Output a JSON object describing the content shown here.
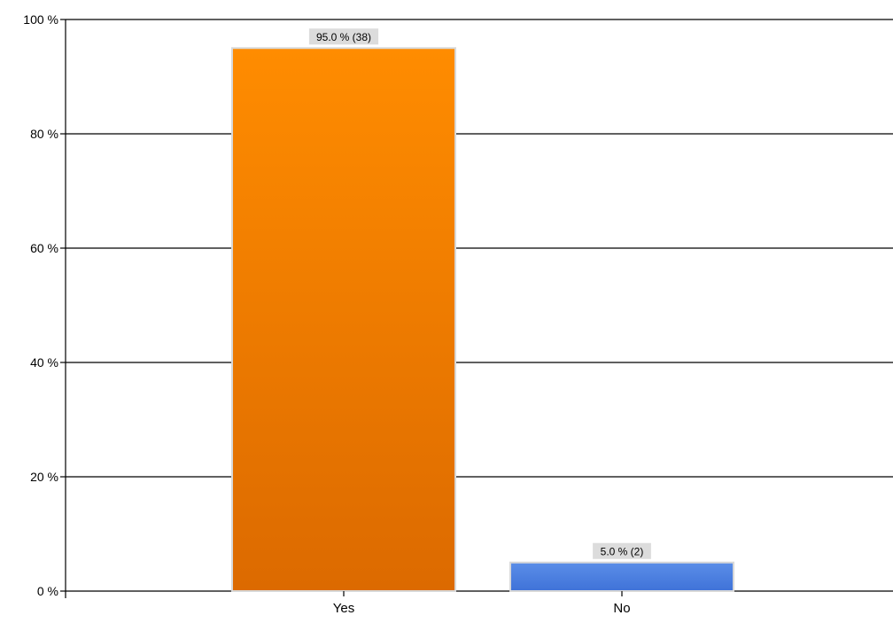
{
  "chart_data": {
    "type": "bar",
    "title": "",
    "xlabel": "",
    "ylabel": "",
    "categories": [
      "Yes",
      "No"
    ],
    "values": [
      95.0,
      5.0
    ],
    "counts": [
      38,
      2
    ],
    "data_labels": [
      "95.0 % (38)",
      "5.0 % (2)"
    ],
    "bar_colors": [
      {
        "top": "#ff8c00",
        "bottom": "#dc6a00"
      },
      {
        "top": "#5b8ee8",
        "bottom": "#3f72d8"
      }
    ],
    "ylim": [
      0,
      100
    ],
    "yticks": [
      0,
      20,
      40,
      60,
      80,
      100
    ],
    "ytick_labels": [
      "0 %",
      "20 %",
      "40 %",
      "60 %",
      "80 %",
      "100 %"
    ],
    "grid": true,
    "legend": "none"
  }
}
